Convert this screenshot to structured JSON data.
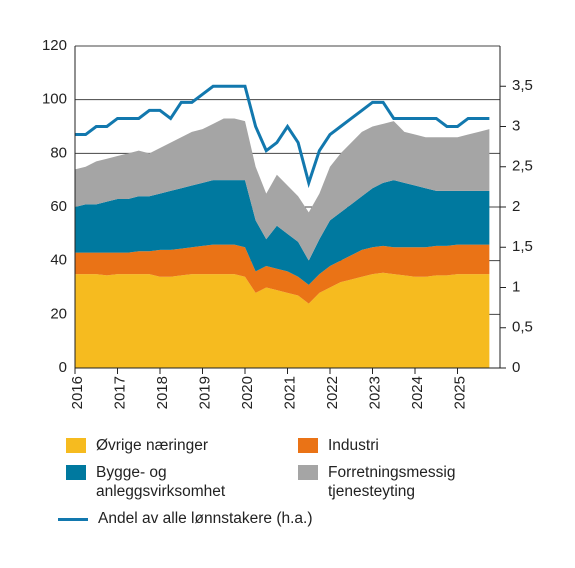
{
  "chart_data": {
    "type": "stacked-area-line",
    "x": [
      2016,
      2016.25,
      2016.5,
      2016.75,
      2017,
      2017.25,
      2017.5,
      2017.75,
      2018,
      2018.25,
      2018.5,
      2018.75,
      2019,
      2019.25,
      2019.5,
      2019.75,
      2020,
      2020.25,
      2020.5,
      2020.75,
      2021,
      2021.25,
      2021.5,
      2021.75,
      2022,
      2022.25,
      2022.5,
      2022.75,
      2023,
      2023.25,
      2023.5,
      2023.75,
      2024,
      2024.25,
      2024.5,
      2024.75,
      2025,
      2025.25,
      2025.5,
      2025.75
    ],
    "xlim": [
      2016,
      2026
    ],
    "xticks": [
      2016,
      2017,
      2018,
      2019,
      2020,
      2021,
      2022,
      2023,
      2024,
      2025
    ],
    "ylim": [
      0,
      120
    ],
    "yticks": [
      0,
      20,
      40,
      60,
      80,
      100,
      120
    ],
    "y2lim": [
      0,
      4
    ],
    "y2ticks": [
      0,
      {
        "value": 0.5,
        "label": "0,5"
      },
      1,
      {
        "value": 1.5,
        "label": "1,5"
      },
      2,
      {
        "value": 2.5,
        "label": "2,5"
      },
      3,
      {
        "value": 3.5,
        "label": "3,5"
      }
    ],
    "grid": true,
    "series": [
      {
        "name": "Øvrige næringer",
        "color": "#f6bb1f",
        "values": [
          35,
          35,
          35,
          34.5,
          35,
          35,
          35,
          35,
          34,
          34,
          34.5,
          35,
          35,
          35,
          35,
          35,
          34,
          28,
          30,
          29,
          28,
          27,
          24,
          28,
          30,
          32,
          33,
          34,
          35,
          35.5,
          35,
          34.5,
          34,
          34,
          34.5,
          34.5,
          35,
          35,
          35,
          35
        ]
      },
      {
        "name": "Industri",
        "color": "#ea7316",
        "values": [
          8,
          8,
          8,
          8.5,
          8,
          8,
          8.5,
          8.5,
          10,
          10,
          10,
          10,
          10.5,
          11,
          11,
          11,
          11,
          8,
          8,
          8,
          8,
          7,
          7,
          7,
          8,
          8,
          9,
          10,
          10,
          10,
          10,
          10.5,
          11,
          11,
          11,
          11,
          11,
          11,
          11,
          11
        ]
      },
      {
        "name": "Bygge- og anleggsvirksomhet",
        "color": "#00799f",
        "values": [
          17,
          18,
          18,
          19,
          20,
          20,
          20.5,
          20.5,
          21,
          22,
          22.5,
          23,
          23.5,
          24,
          24,
          24,
          25,
          19,
          10,
          16,
          14,
          13,
          9,
          13,
          17,
          18,
          19,
          20,
          22,
          23.5,
          25,
          24,
          23,
          22,
          20.5,
          20.5,
          20,
          20,
          20,
          20
        ]
      },
      {
        "name": "Forretningsmessig tjenesteyting",
        "color": "#a5a5a5",
        "values": [
          14,
          14,
          16,
          16,
          16,
          17,
          17,
          16,
          17,
          18,
          19,
          20,
          20,
          21,
          23,
          23,
          22,
          20,
          17,
          19,
          18,
          17,
          18,
          17,
          20,
          22,
          23,
          24,
          23,
          22,
          22,
          19,
          19,
          19,
          20,
          20,
          20,
          21,
          22,
          23
        ]
      },
      {
        "name": "Andel av alle lønnstakere (h.a.)",
        "color": "#1278ae",
        "axis": "y2",
        "values": [
          2.9,
          2.9,
          3.0,
          3.0,
          3.1,
          3.1,
          3.1,
          3.2,
          3.2,
          3.1,
          3.3,
          3.3,
          3.4,
          3.5,
          3.5,
          3.5,
          3.5,
          3.0,
          2.7,
          2.8,
          3.0,
          2.8,
          2.3,
          2.7,
          2.9,
          3.0,
          3.1,
          3.2,
          3.3,
          3.3,
          3.1,
          3.1,
          3.1,
          3.1,
          3.1,
          3.0,
          3.0,
          3.1,
          3.1,
          3.1
        ]
      }
    ]
  }
}
